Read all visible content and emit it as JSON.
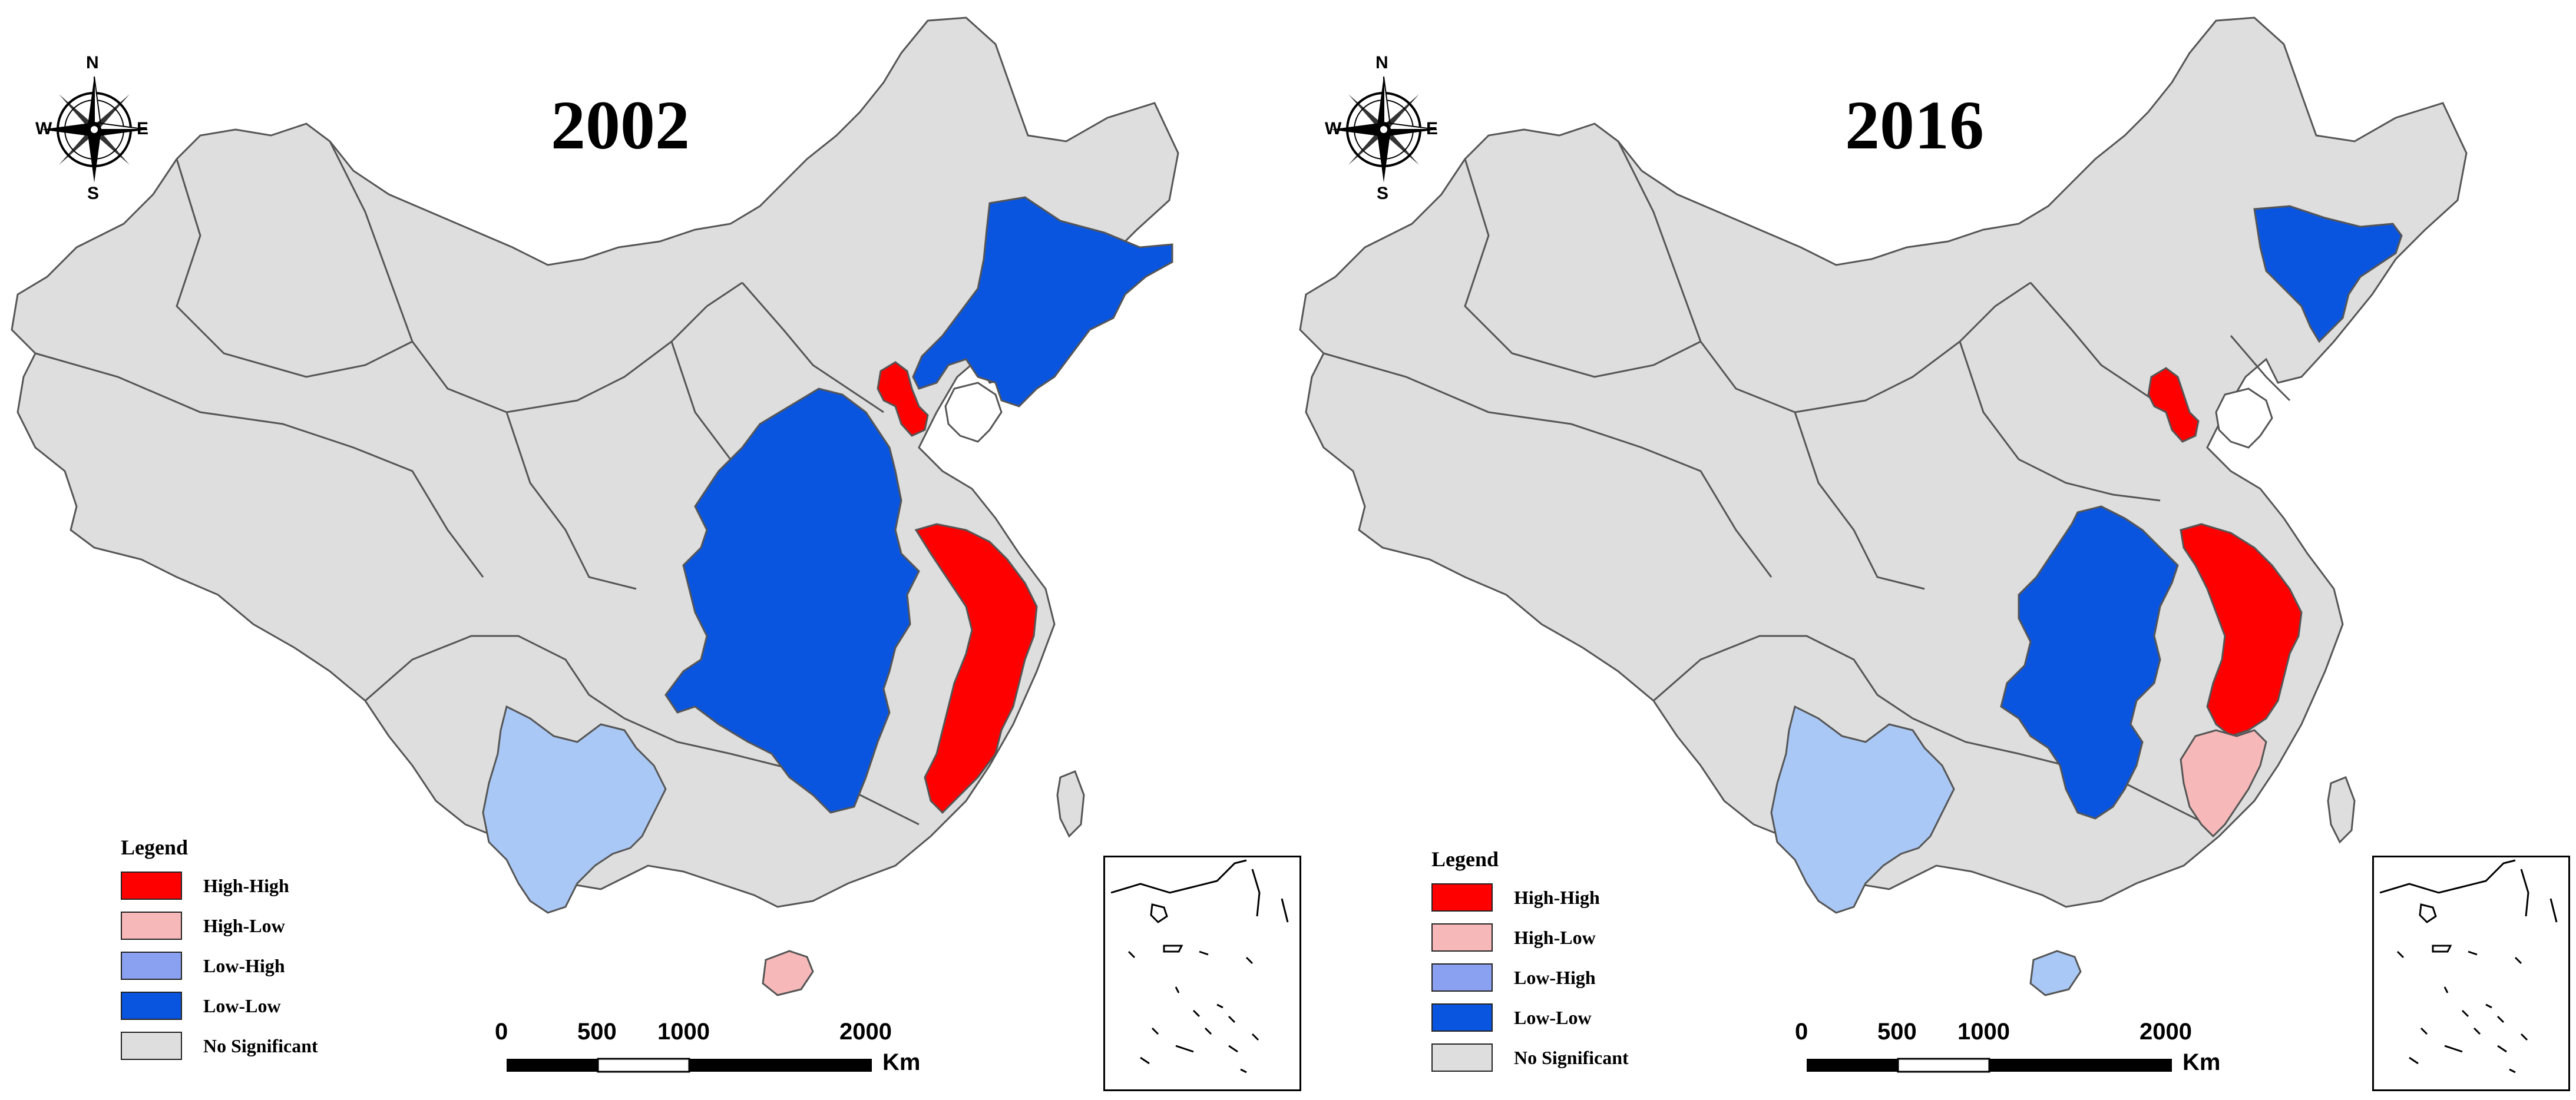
{
  "maps": [
    {
      "year": "2002",
      "regions": {
        "heilongjiang_jilin_liaoning": "Low-Low",
        "beijing_tianjin": "High-High",
        "shanxi_henan_shaanxi_hubei_hunan_chongqing_guizhou": "Low-Low",
        "jiangsu_shanghai_zhejiang_fujian": "High-High",
        "yunnan": "Low-High",
        "hainan": "High-Low"
      }
    },
    {
      "year": "2016",
      "regions": {
        "heilongjiang": "Low-Low",
        "beijing_tianjin": "High-High",
        "henan_hubei_hunan_guizhou": "Low-Low",
        "jiangsu_shanghai_zhejiang": "High-High",
        "fujian": "High-Low",
        "yunnan": "Low-High",
        "hainan": "Low-High"
      }
    }
  ],
  "legend": {
    "title": "Legend",
    "items": [
      {
        "label": "High-High",
        "color": "#ff0000"
      },
      {
        "label": "High-Low",
        "color": "#f6b8b8"
      },
      {
        "label": "Low-High",
        "color": "#a9c8f5"
      },
      {
        "label": "Low-Low",
        "color": "#0a55e0"
      },
      {
        "label": "No Significant",
        "color": "#dedede"
      }
    ]
  },
  "compass": {
    "n": "N",
    "s": "S",
    "e": "E",
    "w": "W"
  },
  "scale": {
    "ticks": [
      "0",
      "500",
      "1000",
      "2000"
    ],
    "unit": "Km"
  },
  "colors": {
    "no_significant": "#dedede",
    "border": "#555555"
  }
}
